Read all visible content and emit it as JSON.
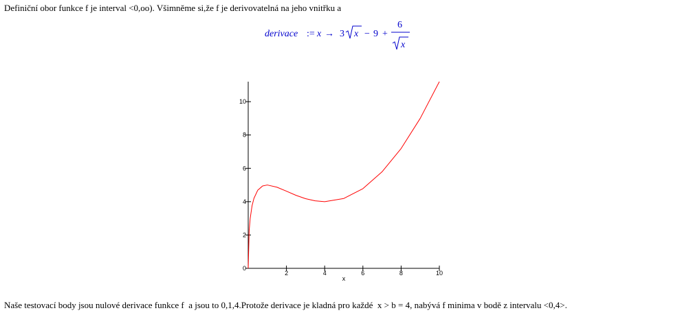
{
  "text_top": "Definiční obor funkce f je interval <0,oo). Všimněme si,že f je derivovatelná na jeho vnitřku a",
  "formula": {
    "lhs": "derivace",
    "assign": ":=",
    "var": "x",
    "arrow": "→",
    "coef": "3",
    "radicand": "x",
    "minus": "−",
    "nine": "9",
    "plus": "+",
    "numer": "6",
    "denom_radicand": "x"
  },
  "chart_data": {
    "type": "line",
    "xlabel": "x",
    "x": [
      0,
      0.05,
      0.1,
      0.2,
      0.3,
      0.5,
      0.75,
      1,
      1.5,
      2,
      2.5,
      3,
      3.5,
      4,
      5,
      6,
      7,
      8,
      9,
      10
    ],
    "values": [
      0,
      2.26,
      2.96,
      3.75,
      4.2,
      4.69,
      4.94,
      5,
      4.87,
      4.63,
      4.38,
      4.18,
      4.05,
      4,
      4.19,
      4.78,
      5.79,
      7.19,
      9,
      11.2
    ],
    "color": "#ff0000",
    "xlim": [
      0,
      10
    ],
    "ylim": [
      0,
      11.2
    ],
    "xticks": [
      2,
      4,
      6,
      8,
      10
    ],
    "yticks": [
      0,
      2,
      4,
      6,
      8,
      10
    ]
  },
  "text_bottom": "Naše testovací body jsou nulové derivace funkce f  a jsou to 0,1,4.Protože derivace je kladná pro každé  x > b = 4, nabývá f minima v bodě z intervalu <0,4>."
}
